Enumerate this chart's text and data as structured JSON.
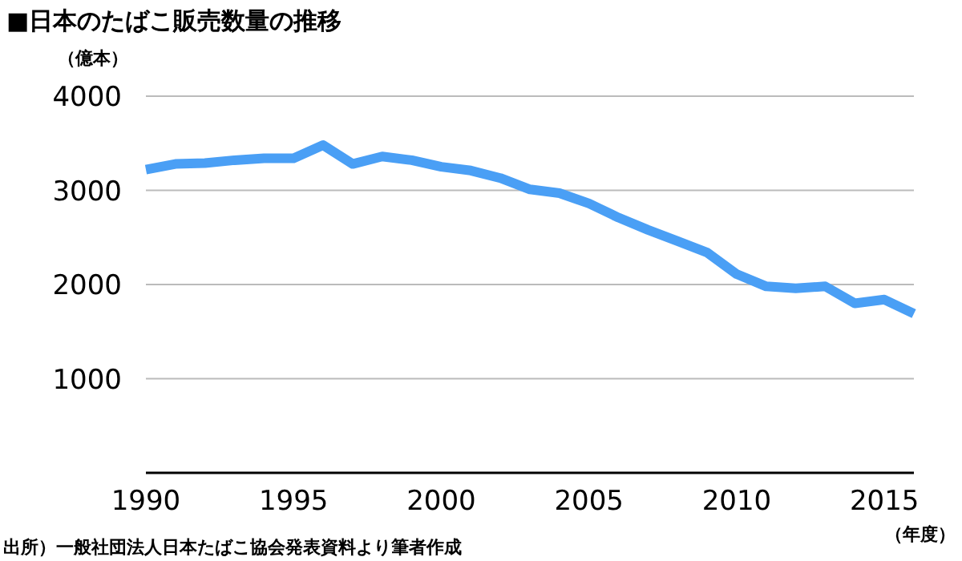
{
  "chart_data": {
    "type": "line",
    "title": "■日本のたばこ販売数量の推移",
    "ylabel": "（億本）",
    "xlabel": "（年度）",
    "annotations": [
      "出所）一般社団法人日本たばこ協会発表資料より筆者作成"
    ],
    "x": [
      1990,
      1991,
      1992,
      1993,
      1994,
      1995,
      1996,
      1997,
      1998,
      1999,
      2000,
      2001,
      2002,
      2003,
      2004,
      2005,
      2006,
      2007,
      2008,
      2009,
      2010,
      2011,
      2012,
      2013,
      2014,
      2015,
      2016
    ],
    "series": [
      {
        "color": "#4a9ff5",
        "values": [
          3220,
          3280,
          3290,
          3320,
          3340,
          3340,
          3480,
          3280,
          3360,
          3320,
          3250,
          3210,
          3130,
          3010,
          2970,
          2860,
          2710,
          2580,
          2460,
          2340,
          2110,
          1980,
          1960,
          1980,
          1800,
          1840,
          1690
        ]
      }
    ],
    "xlim": [
      1990,
      2016
    ],
    "xticks": [
      1990,
      1995,
      2000,
      2005,
      2010,
      2015
    ],
    "ylim": [
      0,
      4000
    ],
    "yticks": [
      1000,
      2000,
      3000,
      4000
    ],
    "grid": "y",
    "marker": "none",
    "line_style": "solid"
  }
}
